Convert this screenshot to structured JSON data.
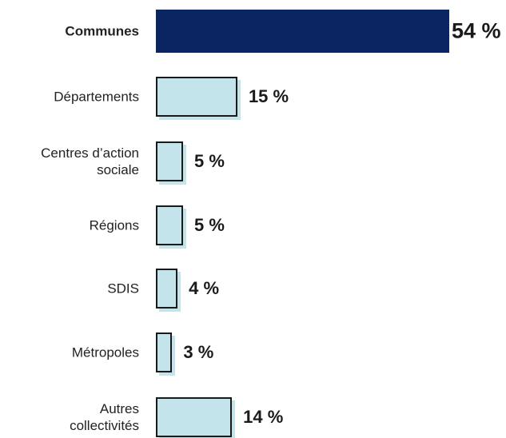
{
  "chart_data": {
    "type": "bar",
    "orientation": "horizontal",
    "categories": [
      "Communes",
      "Départements",
      "Centres d’action sociale",
      "Régions",
      "SDIS",
      "Métropoles",
      "Autres collectivités"
    ],
    "values": [
      54,
      15,
      5,
      5,
      4,
      3,
      14
    ],
    "value_labels": [
      "54 %",
      "15 %",
      "5 %",
      "5 %",
      "4 %",
      "3 %",
      "14 %"
    ],
    "colors": [
      "#0b2563",
      "#c3e4ea",
      "#c3e4ea",
      "#c3e4ea",
      "#c3e4ea",
      "#c3e4ea",
      "#c3e4ea"
    ]
  }
}
